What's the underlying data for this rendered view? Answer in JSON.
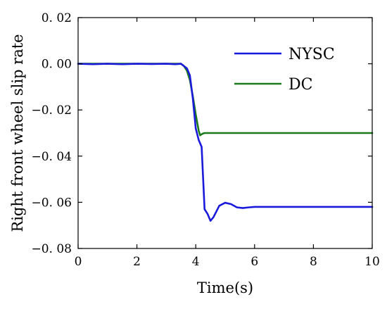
{
  "chart_data": {
    "type": "line",
    "xlabel": "Time(s)",
    "ylabel": "Right front wheel slip rate",
    "xlim": [
      0,
      10
    ],
    "ylim": [
      -0.08,
      0.02
    ],
    "x_ticks": [
      0,
      2,
      4,
      6,
      8,
      10
    ],
    "y_ticks": [
      0.02,
      0.0,
      -0.02,
      -0.04,
      -0.06,
      -0.08
    ],
    "x_tick_labels": [
      "0",
      "2",
      "4",
      "6",
      "8",
      "10"
    ],
    "y_tick_labels": [
      "0. 02",
      "0. 00",
      "−0. 02",
      "−0. 04",
      "−0. 06",
      "−0. 08"
    ],
    "grid": false,
    "legend_position": "top-right",
    "series": [
      {
        "name": "NYSC",
        "color": "#1a1adc",
        "x": [
          0,
          0.5,
          1.0,
          1.5,
          2.0,
          2.5,
          3.0,
          3.3,
          3.5,
          3.6,
          3.7,
          3.8,
          3.9,
          4.0,
          4.1,
          4.2,
          4.3,
          4.4,
          4.5,
          4.6,
          4.8,
          5.0,
          5.2,
          5.4,
          5.6,
          5.8,
          6.0,
          6.5,
          7.0,
          8.0,
          9.0,
          10.0
        ],
        "y": [
          0.0,
          -0.0002,
          0.0,
          -0.0002,
          0.0,
          -0.0001,
          0.0,
          -0.0002,
          0.0,
          -0.001,
          -0.002,
          -0.005,
          -0.015,
          -0.028,
          -0.033,
          -0.036,
          -0.063,
          -0.065,
          -0.068,
          -0.0665,
          -0.0615,
          -0.0602,
          -0.0608,
          -0.0622,
          -0.0625,
          -0.0622,
          -0.062,
          -0.062,
          -0.062,
          -0.062,
          -0.062,
          -0.062
        ]
      },
      {
        "name": "DC",
        "color": "#1a7a1a",
        "x": [
          0,
          1.0,
          2.0,
          3.0,
          3.5,
          3.6,
          3.7,
          3.8,
          3.9,
          4.0,
          4.1,
          4.15,
          4.2,
          4.25,
          4.3,
          5.0,
          6.0,
          7.0,
          8.0,
          9.0,
          10.0
        ],
        "y": [
          0.0,
          0.0,
          0.0,
          0.0,
          0.0,
          -0.001,
          -0.003,
          -0.007,
          -0.014,
          -0.022,
          -0.029,
          -0.031,
          -0.0305,
          -0.0302,
          -0.03,
          -0.03,
          -0.03,
          -0.03,
          -0.03,
          -0.03,
          -0.03
        ]
      }
    ]
  }
}
